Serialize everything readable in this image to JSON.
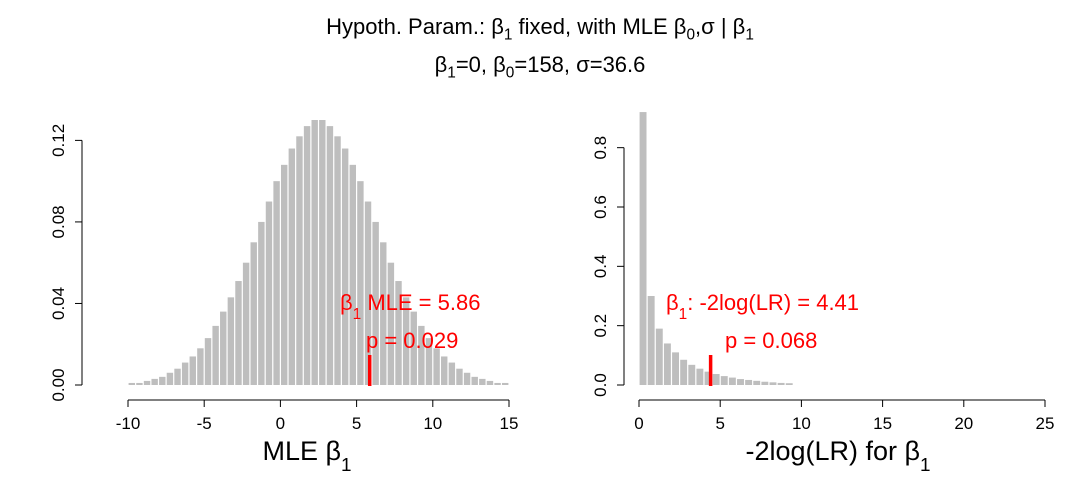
{
  "title": {
    "line1": "Hypoth. Param.: β1 fixed, with MLE β0,σ | β1",
    "line2": "β1=0, β0=158, σ=36.6"
  },
  "colors": {
    "bars": "#bebebe",
    "marker": "#ff0000",
    "axis": "#000000",
    "annotation": "#ff0000"
  },
  "chart_data": [
    {
      "type": "bar",
      "subtype": "histogram",
      "xlabel": "MLE β1",
      "xlim": [
        -10,
        15
      ],
      "ylim": [
        0,
        0.13
      ],
      "x_ticks": [
        -10,
        -5,
        0,
        5,
        10,
        15
      ],
      "x_tick_labels": [
        "-10",
        "-5",
        "0",
        "5",
        "10",
        "15"
      ],
      "y_ticks": [
        0,
        0.04,
        0.08,
        0.12
      ],
      "y_tick_labels": [
        "0.00",
        "0.04",
        "0.08",
        "0.12"
      ],
      "bin_width": 0.5,
      "bin_start": -10,
      "values": [
        0.001,
        0.001,
        0.002,
        0.003,
        0.004,
        0.006,
        0.008,
        0.011,
        0.014,
        0.018,
        0.023,
        0.029,
        0.036,
        0.043,
        0.051,
        0.06,
        0.07,
        0.08,
        0.09,
        0.1,
        0.108,
        0.116,
        0.122,
        0.127,
        0.13,
        0.13,
        0.127,
        0.122,
        0.116,
        0.108,
        0.1,
        0.09,
        0.08,
        0.07,
        0.06,
        0.051,
        0.043,
        0.036,
        0.029,
        0.023,
        0.018,
        0.014,
        0.011,
        0.008,
        0.006,
        0.004,
        0.003,
        0.002,
        0.001,
        0.001
      ],
      "observed_value": 5.86,
      "annotation": {
        "stat_label": "β1 MLE = 5.86",
        "p_label": "p = 0.029"
      }
    },
    {
      "type": "bar",
      "subtype": "histogram",
      "xlabel": "-2log(LR) for β1",
      "xlim": [
        0,
        25
      ],
      "ylim": [
        0,
        0.9
      ],
      "x_ticks": [
        0,
        5,
        10,
        15,
        20,
        25
      ],
      "x_tick_labels": [
        "0",
        "5",
        "10",
        "15",
        "20",
        "25"
      ],
      "y_ticks": [
        0,
        0.2,
        0.4,
        0.6,
        0.8
      ],
      "y_tick_labels": [
        "0.0",
        "0.2",
        "0.4",
        "0.6",
        "0.8"
      ],
      "bin_width": 0.5,
      "bin_start": 0,
      "values": [
        0.92,
        0.3,
        0.19,
        0.14,
        0.11,
        0.085,
        0.068,
        0.055,
        0.045,
        0.037,
        0.03,
        0.025,
        0.02,
        0.017,
        0.014,
        0.011,
        0.009,
        0.007,
        0.006
      ],
      "observed_value": 4.41,
      "annotation": {
        "stat_label": "β1: -2log(LR) = 4.41",
        "p_label": "p = 0.068"
      }
    }
  ]
}
